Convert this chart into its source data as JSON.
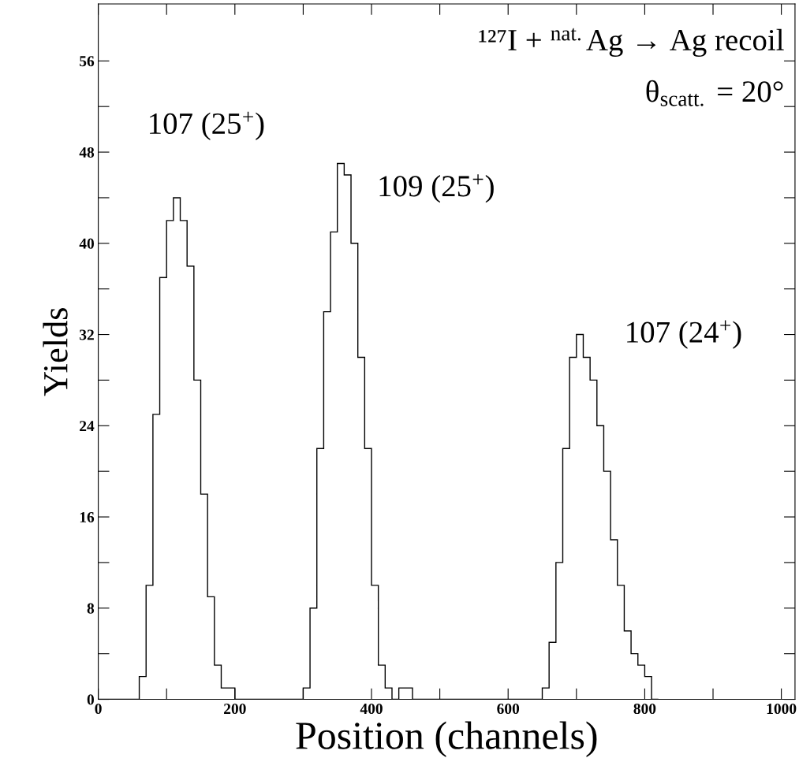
{
  "chart_data": {
    "type": "histogram",
    "xlabel": "Position (channels)",
    "ylabel": "Yields",
    "bins": [
      0,
      10,
      20,
      30,
      40,
      50,
      60,
      70,
      80,
      90,
      100,
      110,
      120,
      130,
      140,
      150,
      160,
      170,
      180,
      190,
      200,
      210,
      220,
      230,
      240,
      250,
      260,
      270,
      280,
      290,
      300,
      310,
      320,
      330,
      340,
      350,
      360,
      370,
      380,
      390,
      400,
      410,
      420,
      430,
      440,
      450,
      460,
      470,
      480,
      490,
      500,
      510,
      520,
      530,
      540,
      550,
      560,
      570,
      580,
      590,
      600,
      610,
      620,
      630,
      640,
      650,
      660,
      670,
      680,
      690,
      700,
      710,
      720,
      730,
      740,
      750,
      760,
      770,
      780,
      790,
      800,
      810,
      820
    ],
    "values": [
      0,
      0,
      0,
      0,
      0,
      0,
      2,
      10,
      25,
      37,
      42,
      44,
      42,
      38,
      28,
      18,
      9,
      3,
      1,
      1,
      0,
      0,
      0,
      0,
      0,
      0,
      0,
      0,
      0,
      0,
      1,
      8,
      22,
      34,
      41,
      47,
      46,
      40,
      30,
      22,
      10,
      3,
      1,
      0,
      1,
      1,
      0,
      0,
      0,
      0,
      0,
      0,
      0,
      0,
      0,
      0,
      0,
      0,
      0,
      0,
      0,
      0,
      0,
      0,
      0,
      1,
      5,
      12,
      22,
      30,
      32,
      30,
      28,
      24,
      20,
      14,
      10,
      6,
      4,
      3,
      2,
      0
    ],
    "color": "#000000",
    "xlim": [
      0,
      1020
    ],
    "ylim": [
      0,
      61
    ],
    "xticks": [
      0,
      {
        "value": 100,
        "label": null
      },
      200,
      {
        "value": 300,
        "label": null
      },
      400,
      {
        "value": 500,
        "label": null
      },
      600,
      {
        "value": 700,
        "label": null
      },
      800,
      {
        "value": 900,
        "label": null
      },
      1000
    ],
    "yticks": [
      0,
      {
        "value": 4,
        "label": null
      },
      8,
      {
        "value": 12,
        "label": null
      },
      16,
      {
        "value": 20,
        "label": null
      },
      24,
      {
        "value": 28,
        "label": null
      },
      32,
      {
        "value": 36,
        "label": null
      },
      40,
      {
        "value": 44,
        "label": null
      },
      48,
      {
        "value": 52,
        "label": null
      },
      56
    ],
    "grid": false,
    "annotations": [
      "¹²⁷I + $^{nat.}$Ag → Ag recoil",
      "θ$_{scatt.}$ = 20°",
      "107 (25$^{+}$)",
      "109 (25$^{+}$)",
      "107 (24$^{+}$)"
    ]
  }
}
